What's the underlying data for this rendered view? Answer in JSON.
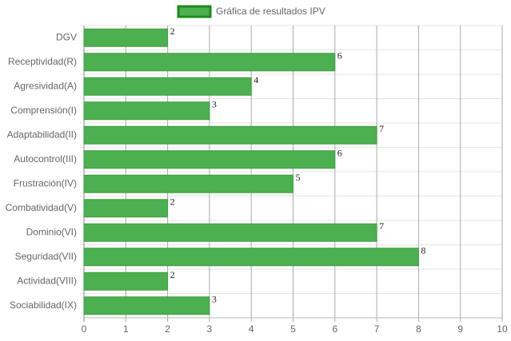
{
  "chart_data": {
    "type": "hbar",
    "categories": [
      "DGV",
      "Receptividad(R)",
      "Agresividad(A)",
      "Comprensión(I)",
      "Adaptabilidad(II)",
      "Autocontrol(III)",
      "Frustración(IV)",
      "Combatividad(V)",
      "Dominio(VI)",
      "Seguridad(VII)",
      "Actividad(VIII)",
      "Sociabilidad(IX)"
    ],
    "series": [
      {
        "name": "Gráfica de resultados IPV",
        "color": "#4caf50",
        "values": [
          2,
          6,
          4,
          3,
          7,
          6,
          5,
          2,
          7,
          8,
          2,
          3
        ]
      }
    ],
    "xlim": [
      0,
      10
    ],
    "xticks": [
      0,
      1,
      2,
      3,
      4,
      5,
      6,
      7,
      8,
      9,
      10
    ],
    "grid": true,
    "legend": "top"
  }
}
